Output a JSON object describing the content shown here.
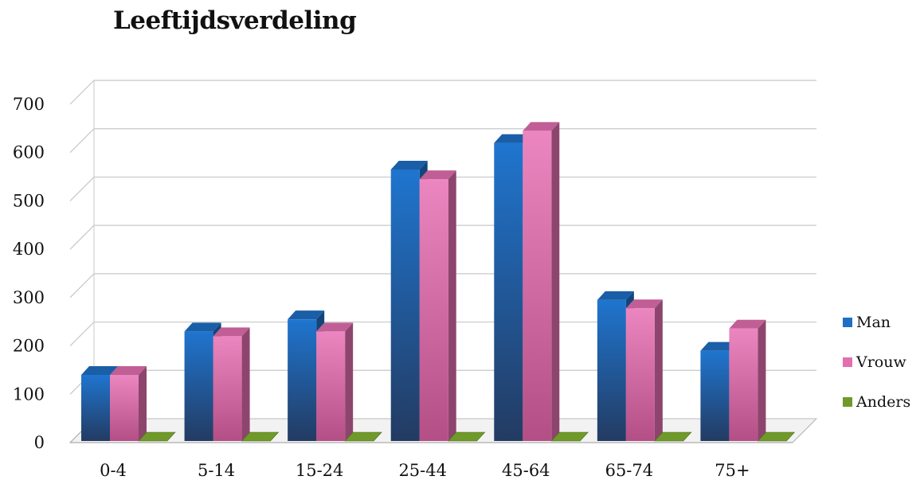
{
  "chart_data": {
    "type": "bar",
    "title": "Leeftijdsverdeling",
    "xlabel": "",
    "ylabel": "",
    "categories": [
      "0-4",
      "5-14",
      "15-24",
      "25-44",
      "45-64",
      "65-74",
      "75+"
    ],
    "series": [
      {
        "name": "Man",
        "color": "#1f6fc4",
        "values": [
          140,
          230,
          255,
          565,
          620,
          295,
          190
        ]
      },
      {
        "name": "Vrouw",
        "color": "#e36fb0",
        "values": [
          140,
          220,
          230,
          545,
          645,
          278,
          236
        ]
      },
      {
        "name": "Anders",
        "color": "#6f9a2a",
        "values": [
          0,
          0,
          0,
          0,
          0,
          0,
          0
        ]
      }
    ],
    "ylim": [
      0,
      700
    ],
    "yticks": [
      "0",
      "100",
      "200",
      "300",
      "400",
      "500",
      "600",
      "700"
    ],
    "grid": true,
    "legend_position": "right",
    "style": "3d-clustered-column"
  }
}
